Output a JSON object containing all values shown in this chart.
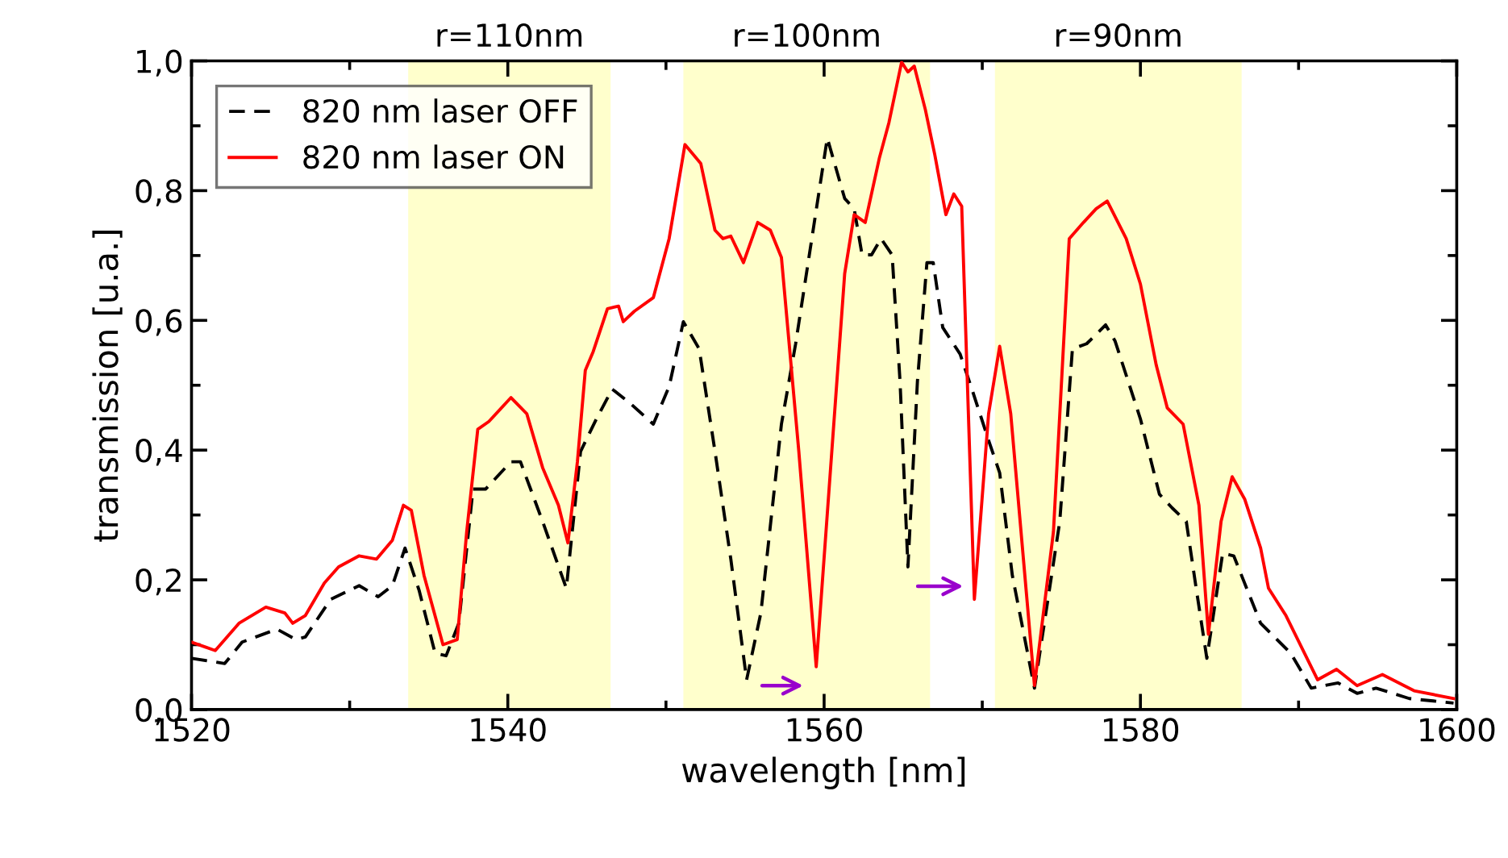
{
  "chart_data": {
    "type": "line",
    "xlabel": "wavelength [nm]",
    "ylabel": "transmission [u.a.]",
    "xlim": [
      1520,
      1600
    ],
    "xticks": [
      1520,
      1540,
      1560,
      1580,
      1600
    ],
    "ylim": [
      0,
      1.0
    ],
    "yticks": [
      {
        "value": 0,
        "label": "0,0"
      },
      {
        "value": 0.2,
        "label": "0,2"
      },
      {
        "value": 0.4,
        "label": "0,4"
      },
      {
        "value": 0.6,
        "label": "0,6"
      },
      {
        "value": 0.8,
        "label": "0,8"
      },
      {
        "value": 1.0,
        "label": "1,0"
      }
    ],
    "grid": false,
    "legend": "top left",
    "marker": "none",
    "bands": [
      {
        "axis": "x",
        "from": 1533.7,
        "to": 1546.5,
        "label": "r=110nm",
        "color": "#ffffcc"
      },
      {
        "axis": "x",
        "from": 1551.1,
        "to": 1566.7,
        "label": "r=100nm",
        "color": "#ffffcc"
      },
      {
        "axis": "x",
        "from": 1570.8,
        "to": 1586.4,
        "label": "r=90nm",
        "color": "#ffffcc"
      }
    ],
    "series": [
      {
        "name": "820 nm laser OFF",
        "color": "#000000",
        "line_style": "dashed",
        "x": [
          1520.0,
          1522.1,
          1523.2,
          1525.4,
          1526.6,
          1527.2,
          1528.8,
          1530.6,
          1531.8,
          1532.7,
          1533.5,
          1534.4,
          1535.4,
          1536.1,
          1536.9,
          1537.8,
          1538.6,
          1540.2,
          1540.8,
          1542.2,
          1543.7,
          1544.6,
          1545.6,
          1546.6,
          1547.7,
          1549.2,
          1550.2,
          1551.1,
          1552.1,
          1553.1,
          1554.1,
          1555.1,
          1556.0,
          1557.3,
          1558.2,
          1560.2,
          1561.3,
          1561.9,
          1562.4,
          1563.0,
          1563.6,
          1564.3,
          1564.8,
          1565.3,
          1565.9,
          1566.5,
          1566.9,
          1567.5,
          1568.6,
          1569.4,
          1570.4,
          1571.1,
          1571.9,
          1573.3,
          1574.9,
          1575.7,
          1576.6,
          1577.8,
          1578.4,
          1580.0,
          1581.2,
          1582.0,
          1582.9,
          1583.5,
          1584.2,
          1585.2,
          1585.9,
          1587.6,
          1589.5,
          1590.8,
          1592.5,
          1593.7,
          1594.9,
          1597.0,
          1599.8
        ],
        "values": [
          0.079,
          0.071,
          0.104,
          0.124,
          0.108,
          0.112,
          0.17,
          0.191,
          0.174,
          0.191,
          0.249,
          0.183,
          0.087,
          0.083,
          0.133,
          0.34,
          0.34,
          0.382,
          0.382,
          0.29,
          0.187,
          0.398,
          0.448,
          0.494,
          0.473,
          0.44,
          0.498,
          0.598,
          0.556,
          0.398,
          0.232,
          0.046,
          0.149,
          0.44,
          0.564,
          0.881,
          0.788,
          0.772,
          0.701,
          0.701,
          0.726,
          0.701,
          0.506,
          0.22,
          0.506,
          0.689,
          0.689,
          0.589,
          0.548,
          0.49,
          0.415,
          0.365,
          0.207,
          0.033,
          0.29,
          0.556,
          0.564,
          0.593,
          0.568,
          0.448,
          0.332,
          0.311,
          0.29,
          0.191,
          0.079,
          0.241,
          0.237,
          0.133,
          0.087,
          0.033,
          0.041,
          0.025,
          0.033,
          0.017,
          0.01
        ]
      },
      {
        "name": "820 nm laser ON",
        "color": "#ff0000",
        "line_style": "solid",
        "x": [
          1520.0,
          1521.5,
          1523.0,
          1524.7,
          1525.9,
          1526.4,
          1527.2,
          1528.4,
          1529.3,
          1530.6,
          1531.7,
          1532.7,
          1533.4,
          1533.9,
          1534.7,
          1535.9,
          1536.8,
          1537.4,
          1538.1,
          1538.8,
          1540.2,
          1541.2,
          1542.2,
          1543.2,
          1543.8,
          1544.4,
          1544.9,
          1545.4,
          1546.3,
          1547.0,
          1547.3,
          1548.0,
          1549.2,
          1550.2,
          1551.2,
          1552.2,
          1553.1,
          1553.6,
          1554.1,
          1554.9,
          1555.8,
          1556.6,
          1557.3,
          1558.4,
          1559.5,
          1561.3,
          1561.9,
          1562.6,
          1563.5,
          1564.1,
          1564.9,
          1565.3,
          1565.7,
          1566.4,
          1567.0,
          1567.7,
          1568.2,
          1568.7,
          1569.5,
          1570.4,
          1571.1,
          1571.8,
          1573.3,
          1574.5,
          1575.5,
          1576.4,
          1577.2,
          1577.9,
          1579.1,
          1580.0,
          1581.0,
          1581.7,
          1582.7,
          1583.7,
          1584.3,
          1585.1,
          1585.8,
          1586.6,
          1587.6,
          1588.1,
          1589.2,
          1591.2,
          1592.4,
          1593.7,
          1595.3,
          1597.3,
          1599.8
        ],
        "values": [
          0.104,
          0.091,
          0.133,
          0.158,
          0.149,
          0.133,
          0.145,
          0.195,
          0.22,
          0.237,
          0.232,
          0.261,
          0.315,
          0.307,
          0.207,
          0.1,
          0.108,
          0.274,
          0.432,
          0.444,
          0.481,
          0.456,
          0.373,
          0.315,
          0.257,
          0.382,
          0.523,
          0.552,
          0.618,
          0.622,
          0.598,
          0.614,
          0.635,
          0.726,
          0.871,
          0.842,
          0.739,
          0.726,
          0.73,
          0.689,
          0.751,
          0.739,
          0.697,
          0.398,
          0.066,
          0.672,
          0.763,
          0.751,
          0.851,
          0.905,
          0.998,
          0.983,
          0.992,
          0.925,
          0.855,
          0.763,
          0.795,
          0.776,
          0.17,
          0.456,
          0.56,
          0.456,
          0.037,
          0.274,
          0.726,
          0.751,
          0.772,
          0.784,
          0.726,
          0.656,
          0.531,
          0.465,
          0.44,
          0.315,
          0.116,
          0.29,
          0.359,
          0.324,
          0.249,
          0.187,
          0.145,
          0.046,
          0.062,
          0.037,
          0.054,
          0.029,
          0.017
        ]
      }
    ]
  }
}
